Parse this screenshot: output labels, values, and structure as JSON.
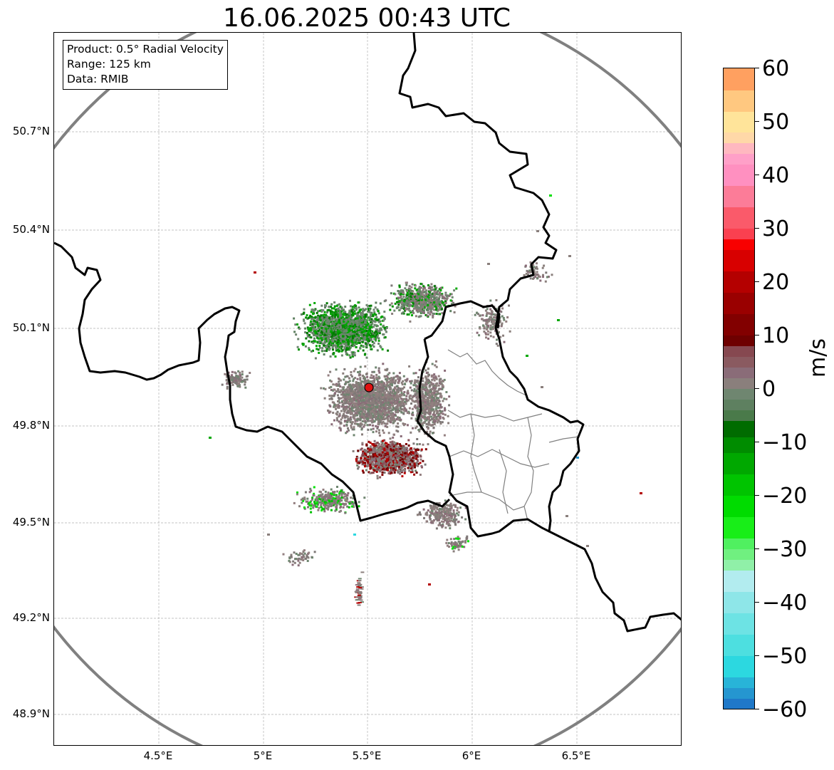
{
  "title": "16.06.2025 00:43 UTC",
  "info_box": {
    "product": "Product: 0.5° Radial Velocity",
    "range": "Range: 125 km",
    "data": "Data: RMIB"
  },
  "map": {
    "lat_labels": [
      "50.7°N",
      "50.4°N",
      "50.1°N",
      "49.8°N",
      "49.5°N",
      "49.2°N",
      "48.9°N"
    ],
    "lon_labels": [
      "4.5°E",
      "5°E",
      "5.5°E",
      "6°E",
      "6.5°E"
    ],
    "radar_site": {
      "lon": 5.505,
      "lat": 49.915
    },
    "lon_range": [
      4.0,
      7.0
    ],
    "lat_range": [
      48.8,
      51.0
    ],
    "range_ring_km": 125,
    "range_ring_color": "#808080",
    "border_color": "#000000",
    "subdivision_color": "#808080"
  },
  "colorbar": {
    "unit": "m/s",
    "labels": [
      "60",
      "50",
      "40",
      "30",
      "20",
      "10",
      "0",
      "−10",
      "−20",
      "−30",
      "−40",
      "−50",
      "−60"
    ],
    "vmin": -60,
    "vmax": 60,
    "segments": [
      {
        "from": -60,
        "to": -58,
        "color": "#1f78c8"
      },
      {
        "from": -58,
        "to": -56,
        "color": "#2596d0"
      },
      {
        "from": -56,
        "to": -54,
        "color": "#28b4d8"
      },
      {
        "from": -54,
        "to": -50,
        "color": "#2cd8e0"
      },
      {
        "from": -50,
        "to": -46,
        "color": "#4ddfe0"
      },
      {
        "from": -46,
        "to": -42,
        "color": "#6de3e4"
      },
      {
        "from": -42,
        "to": -38,
        "color": "#8ee6e8"
      },
      {
        "from": -38,
        "to": -34,
        "color": "#b2ecef"
      },
      {
        "from": -34,
        "to": -32,
        "color": "#90f0a8"
      },
      {
        "from": -32,
        "to": -30,
        "color": "#70f080"
      },
      {
        "from": -30,
        "to": -28,
        "color": "#50f060"
      },
      {
        "from": -28,
        "to": -24,
        "color": "#18ee18"
      },
      {
        "from": -24,
        "to": -20,
        "color": "#00dc00"
      },
      {
        "from": -20,
        "to": -16,
        "color": "#00c400"
      },
      {
        "from": -16,
        "to": -12,
        "color": "#00a800"
      },
      {
        "from": -12,
        "to": -9,
        "color": "#008c00"
      },
      {
        "from": -9,
        "to": -6,
        "color": "#006c00"
      },
      {
        "from": -6,
        "to": -4,
        "color": "#4a7a4a"
      },
      {
        "from": -4,
        "to": -2,
        "color": "#5e8060"
      },
      {
        "from": -2,
        "to": 0,
        "color": "#6f8670"
      },
      {
        "from": 0,
        "to": 2,
        "color": "#8a7f7c"
      },
      {
        "from": 2,
        "to": 4,
        "color": "#8a6c78"
      },
      {
        "from": 4,
        "to": 6,
        "color": "#8a5a60"
      },
      {
        "from": 6,
        "to": 8,
        "color": "#864850"
      },
      {
        "from": 8,
        "to": 10,
        "color": "#6e0000"
      },
      {
        "from": 10,
        "to": 14,
        "color": "#820000"
      },
      {
        "from": 14,
        "to": 18,
        "color": "#9a0000"
      },
      {
        "from": 18,
        "to": 22,
        "color": "#b40000"
      },
      {
        "from": 22,
        "to": 26,
        "color": "#d80000"
      },
      {
        "from": 26,
        "to": 28,
        "color": "#f80000"
      },
      {
        "from": 28,
        "to": 30,
        "color": "#fa4050"
      },
      {
        "from": 30,
        "to": 34,
        "color": "#fa5a6a"
      },
      {
        "from": 34,
        "to": 38,
        "color": "#fc7c98"
      },
      {
        "from": 38,
        "to": 42,
        "color": "#ff90c0"
      },
      {
        "from": 42,
        "to": 44,
        "color": "#ffa0c8"
      },
      {
        "from": 44,
        "to": 46,
        "color": "#ffb8c0"
      },
      {
        "from": 46,
        "to": 48,
        "color": "#ffd8a8"
      },
      {
        "from": 48,
        "to": 52,
        "color": "#ffe49a"
      },
      {
        "from": 52,
        "to": 56,
        "color": "#ffc880"
      },
      {
        "from": 56,
        "to": 60,
        "color": "#ffa060"
      }
    ]
  }
}
